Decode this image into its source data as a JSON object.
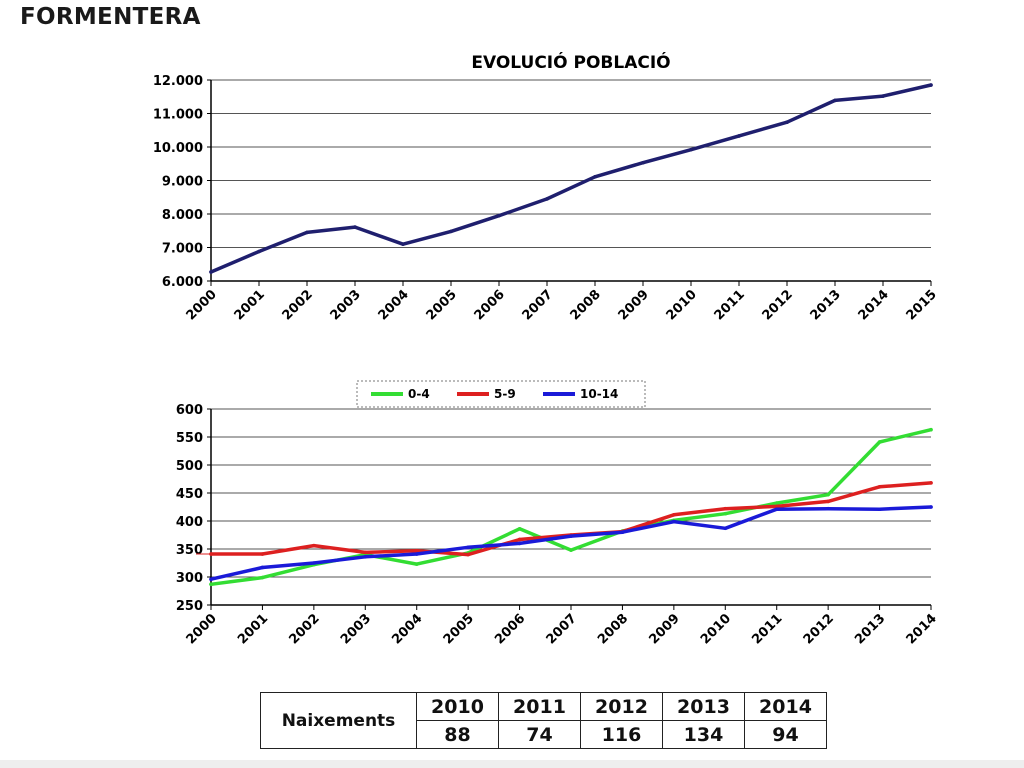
{
  "page": {
    "title": "FORMENTERA"
  },
  "chart_data": [
    {
      "type": "line",
      "title": "EVOLUCIÓ POBLACIÓ",
      "xlabel": "",
      "ylabel": "",
      "x": [
        "2000",
        "2001",
        "2002",
        "2003",
        "2004",
        "2005",
        "2006",
        "2007",
        "2008",
        "2009",
        "2010",
        "2011",
        "2012",
        "2013",
        "2014",
        "2015"
      ],
      "ylim": [
        6000,
        12000
      ],
      "yticks": [
        6000,
        7000,
        8000,
        9000,
        10000,
        11000,
        12000
      ],
      "ytick_labels": [
        "6.000",
        "7.000",
        "8.000",
        "9.000",
        "10.000",
        "11.000",
        "12.000"
      ],
      "grid": true,
      "series": [
        {
          "values": [
            6270,
            6880,
            7450,
            7610,
            7100,
            7480,
            7950,
            8450,
            9110,
            9530,
            9920,
            10330,
            10740,
            11390,
            11520,
            11850
          ],
          "color": "#1f1f6e"
        }
      ]
    },
    {
      "type": "line",
      "title": "",
      "xlabel": "",
      "ylabel": "",
      "x": [
        "2000",
        "2001",
        "2002",
        "2003",
        "2004",
        "2005",
        "2006",
        "2007",
        "2008",
        "2009",
        "2010",
        "2011",
        "2012",
        "2013",
        "2014"
      ],
      "ylim": [
        250,
        600
      ],
      "yticks": [
        250,
        300,
        350,
        400,
        450,
        500,
        550,
        600
      ],
      "grid": true,
      "legend": "top",
      "series": [
        {
          "name": "0-4",
          "color": "#33dd33",
          "values": [
            287,
            299,
            322,
            340,
            323,
            343,
            386,
            348,
            382,
            401,
            413,
            432,
            447,
            541,
            563
          ]
        },
        {
          "name": "5-9",
          "color": "#dd2020",
          "values": [
            341,
            341,
            356,
            344,
            347,
            340,
            367,
            375,
            381,
            411,
            422,
            426,
            435,
            461,
            468
          ]
        },
        {
          "name": "10-14",
          "color": "#1a1ad8",
          "values": [
            296,
            317,
            325,
            336,
            341,
            353,
            360,
            373,
            380,
            399,
            387,
            421,
            422,
            421,
            425
          ]
        }
      ]
    }
  ],
  "table": {
    "row_header": "Naixements",
    "years": [
      "2010",
      "2011",
      "2012",
      "2013",
      "2014"
    ],
    "values": [
      "88",
      "74",
      "116",
      "134",
      "94"
    ]
  }
}
